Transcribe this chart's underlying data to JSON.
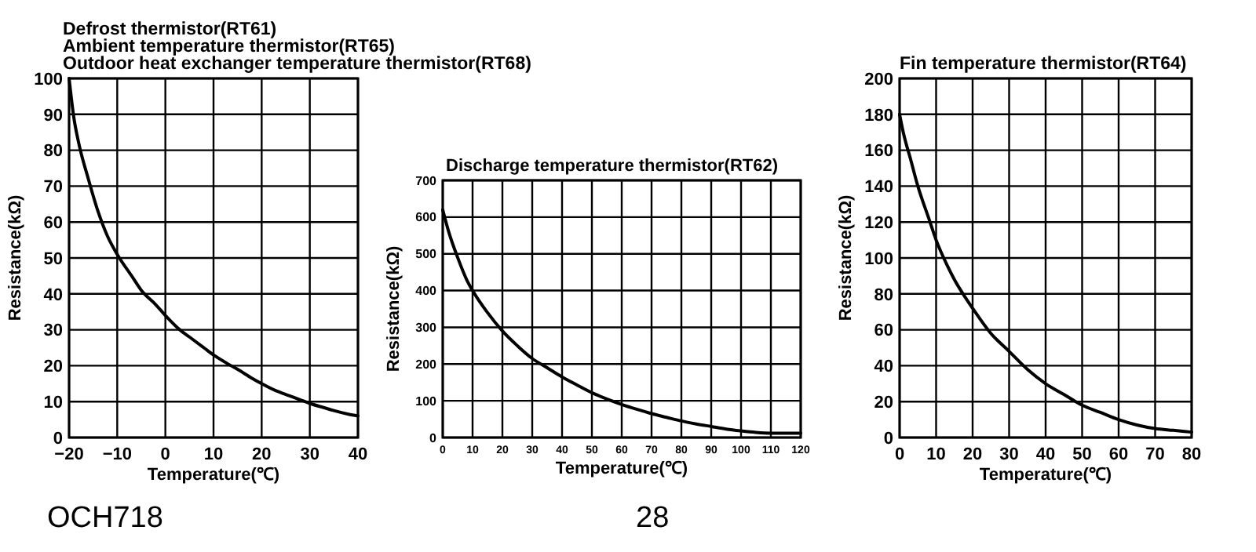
{
  "chart_data": [
    {
      "type": "line",
      "title": "Defrost thermistor(RT61)\nAmbient temperature thermistor(RT65)\nOutdoor heat exchanger temperature thermistor(RT68)",
      "xlabel": "Temperature(℃)",
      "ylabel": "Resistance(kΩ)",
      "x": [
        -20,
        -19,
        -18,
        -16,
        -14,
        -12,
        -10,
        -7,
        -5,
        -2,
        0,
        3,
        5,
        8,
        10,
        13,
        15,
        18,
        20,
        23,
        25,
        28,
        30,
        33,
        35,
        38,
        40
      ],
      "series": [
        {
          "color": "#000000",
          "values": [
            100,
            89,
            82,
            72,
            63,
            56,
            51,
            45,
            41,
            37,
            34,
            30,
            28,
            25,
            23,
            20.5,
            19,
            16.5,
            15,
            13,
            12,
            10.5,
            9.5,
            8.3,
            7.5,
            6.5,
            6
          ]
        }
      ],
      "xlim": [
        -20,
        40
      ],
      "xticks": [
        {
          "value": -20,
          "label": "−20"
        },
        {
          "value": -10,
          "label": "−10"
        },
        0,
        10,
        20,
        30,
        40
      ],
      "ylim": [
        0,
        100
      ],
      "yticks": [
        0,
        10,
        20,
        30,
        40,
        50,
        60,
        70,
        80,
        90,
        100
      ],
      "grid": true,
      "annotations": [
        "OCH718"
      ]
    },
    {
      "type": "line",
      "title": "Discharge temperature thermistor(RT62)",
      "xlabel": "Temperature(℃)",
      "ylabel": "Resistance(kΩ)",
      "x": [
        0,
        2,
        5,
        8,
        10,
        15,
        20,
        25,
        30,
        35,
        40,
        45,
        50,
        55,
        60,
        65,
        70,
        75,
        80,
        85,
        90,
        95,
        100,
        105,
        110,
        115,
        120
      ],
      "series": [
        {
          "color": "#000000",
          "values": [
            620,
            560,
            490,
            430,
            400,
            340,
            290,
            250,
            215,
            190,
            165,
            143,
            122,
            105,
            90,
            77,
            65,
            55,
            45,
            37,
            30,
            23,
            18,
            14,
            12,
            12,
            12
          ]
        }
      ],
      "xlim": [
        0,
        120
      ],
      "xticks": [
        0,
        10,
        20,
        30,
        40,
        50,
        60,
        70,
        80,
        90,
        100,
        110,
        120
      ],
      "ylim": [
        0,
        700
      ],
      "yticks": [
        0,
        100,
        200,
        300,
        400,
        500,
        600,
        700
      ],
      "grid": true,
      "annotations": [
        "28"
      ]
    },
    {
      "type": "line",
      "title": "Fin temperature thermistor(RT64)",
      "xlabel": "Temperature(℃)",
      "ylabel": "Resistance(kΩ)",
      "x": [
        0,
        1,
        3,
        5,
        8,
        10,
        13,
        15,
        18,
        20,
        25,
        30,
        35,
        40,
        45,
        50,
        55,
        60,
        65,
        70,
        75,
        80
      ],
      "series": [
        {
          "color": "#000000",
          "values": [
            180,
            170,
            155,
            140,
            122,
            110,
            96,
            88,
            78,
            72,
            58,
            48,
            38,
            30,
            24,
            18,
            14,
            10,
            7,
            5,
            4,
            3
          ]
        }
      ],
      "xlim": [
        0,
        80
      ],
      "xticks": [
        0,
        10,
        20,
        30,
        40,
        50,
        60,
        70,
        80
      ],
      "ylim": [
        0,
        200
      ],
      "yticks": [
        0,
        20,
        40,
        60,
        80,
        100,
        120,
        140,
        160,
        180,
        200
      ],
      "grid": true
    }
  ]
}
